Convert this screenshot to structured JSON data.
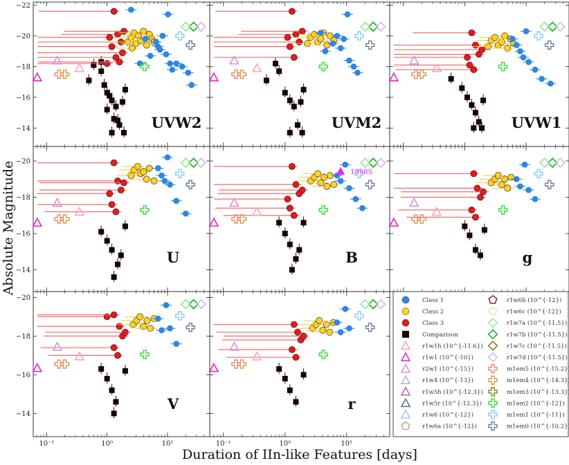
{
  "figure": {
    "ylabel": "Absolute Magnitude",
    "xlabel": "Duration of IIn-like Features [days]"
  },
  "colors": {
    "class1": "#2e86e6",
    "class2": "#ffd21f",
    "class3": "#e41a1c",
    "comparison": "#1a0000",
    "errbar_class3": "#f26b6b",
    "errbar_class2": "#f5c430",
    "errbar_class1": "#1f78d1",
    "gray_points": "#b3b3b3"
  },
  "legend": {
    "col1": [
      {
        "label": "Class 1",
        "marker": "circle",
        "color": "#2e86e6"
      },
      {
        "label": "Class 2",
        "marker": "circle",
        "color": "#ffd21f"
      },
      {
        "label": "Class 3",
        "marker": "circle",
        "color": "#e41a1c"
      },
      {
        "label": "Comparison",
        "marker": "square",
        "color": "#1a0000"
      },
      {
        "label": "r1w1h (10^{-11.6})",
        "marker": "triangle",
        "color": "#f4a6b8"
      },
      {
        "label": "r1w1 (10^{-10})",
        "marker": "triangle",
        "color": "#e61fd6"
      },
      {
        "label": "r2w1 (10^{-15})",
        "marker": "triangle",
        "color": "#d98fd9"
      },
      {
        "label": "r1w4 (10^{-13})",
        "marker": "triangle",
        "color": "#b7b0c8"
      },
      {
        "label": "r1w5h (10^{-12.3})",
        "marker": "triangle",
        "color": "#b05fc0"
      },
      {
        "label": "r1w5r (10^{-12.3})",
        "marker": "triangle",
        "color": "#5a6a80"
      },
      {
        "label": "r1w6 (10^{-12})",
        "marker": "triangle",
        "color": "#a9c4e6"
      },
      {
        "label": "r1w6a (10^{-12})",
        "marker": "pentagon",
        "color": "#c4a882"
      }
    ],
    "col2": [
      {
        "label": "r1w6b (10^{-12})",
        "marker": "pentagon",
        "color": "#a3262b"
      },
      {
        "label": "r1w6c (10^{-12})",
        "marker": "pentagon",
        "color": "#f3dcb6"
      },
      {
        "label": "r1w7a (10^{-11.5})",
        "marker": "diamond",
        "color": "#9ee89e"
      },
      {
        "label": "r1w7b (10^{-11.5})",
        "marker": "diamond",
        "color": "#1fb81f"
      },
      {
        "label": "r1w7c (10^{-11.5})",
        "marker": "diamond",
        "color": "#8a7a2a"
      },
      {
        "label": "r1w7d (10^{-11.5})",
        "marker": "diamond",
        "color": "#d7bde6"
      },
      {
        "label": "m1em5 (10^{-15.2})",
        "marker": "plus",
        "color": "#f28a6b"
      },
      {
        "label": "m1em4 (10^{-14.3})",
        "marker": "plus",
        "color": "#d99a4e"
      },
      {
        "label": "m1em3 (10^{-13.3})",
        "marker": "plus",
        "color": "#8a8a1f"
      },
      {
        "label": "m1em2 (10^{-12})",
        "marker": "plus",
        "color": "#33e533"
      },
      {
        "label": "m1em1 (10^{-11})",
        "marker": "plus",
        "color": "#8fcdf2"
      },
      {
        "label": "m1em0 (10^{-10.2})",
        "marker": "plus",
        "color": "#6f7f99"
      }
    ]
  },
  "chart_data": [
    {
      "type": "scatter",
      "band": "UVW2",
      "xscale": "log",
      "xlim": [
        0.06,
        50
      ],
      "ylim": [
        -12.8,
        -22.2
      ],
      "yticks": [
        -22,
        -20,
        -18,
        -16,
        -14
      ],
      "class1": [
        [
          7.5,
          -19.1
        ],
        [
          8.3,
          -20.0
        ],
        [
          9.5,
          -18.8
        ],
        [
          10.2,
          -21.4
        ],
        [
          11,
          -18.2
        ],
        [
          12,
          -17.8
        ],
        [
          14,
          -18.2
        ],
        [
          17.5,
          -18.0
        ],
        [
          22,
          -17.6
        ],
        [
          25,
          -16.8
        ],
        [
          6.5,
          -19.6
        ],
        [
          7,
          -19.3
        ],
        [
          5.2,
          -18.7
        ],
        [
          3.5,
          -18.2
        ],
        [
          4.3,
          -19.8
        ],
        [
          2.5,
          -21.7
        ]
      ],
      "class2": [
        [
          2.2,
          -19.6
        ],
        [
          2.5,
          -19.9
        ],
        [
          2.8,
          -20.2
        ],
        [
          3.0,
          -19.5
        ],
        [
          3.3,
          -20.0
        ],
        [
          3.6,
          -19.7
        ],
        [
          4.0,
          -20.3
        ],
        [
          4.5,
          -19.4
        ],
        [
          5.0,
          -20.1
        ],
        [
          5.5,
          -19.8
        ],
        [
          6.0,
          -19.6
        ],
        [
          2.6,
          -19.2
        ]
      ],
      "class3": [
        [
          1.3,
          -21.6
        ],
        [
          1.5,
          -20.1
        ],
        [
          1.7,
          -19.6
        ],
        [
          1.8,
          -18.9
        ],
        [
          1.2,
          -19.3
        ],
        [
          1.4,
          -18.6
        ],
        [
          1.9,
          -20.3
        ],
        [
          1.0,
          -18.2
        ],
        [
          1.6,
          -18.3
        ],
        [
          1.1,
          -19.9
        ]
      ],
      "comparison": [
        [
          0.5,
          -17.1
        ],
        [
          0.8,
          -17.7
        ],
        [
          0.9,
          -16.8
        ],
        [
          1.0,
          -16.3
        ],
        [
          1.1,
          -16.1
        ],
        [
          1.2,
          -15.8
        ],
        [
          1.3,
          -14.6
        ],
        [
          1.4,
          -15.4
        ],
        [
          1.0,
          -15.2
        ],
        [
          1.6,
          -14.2
        ],
        [
          1.8,
          -15.7
        ],
        [
          2.0,
          -16.5
        ],
        [
          1.2,
          -13.7
        ],
        [
          1.5,
          -14.5
        ],
        [
          1.9,
          -13.7
        ],
        [
          0.6,
          -18.1
        ],
        [
          0.8,
          -18.3
        ]
      ]
    },
    {
      "type": "scatter",
      "band": "UVM2",
      "xscale": "log",
      "xlim": [
        0.06,
        50
      ],
      "ylim": [
        -12.8,
        -22.2
      ],
      "yticks": [
        -22,
        -20,
        -18,
        -16,
        -14
      ],
      "class1": [
        [
          8,
          -19.2
        ],
        [
          9,
          -19.8
        ],
        [
          10.3,
          -21.4
        ],
        [
          11,
          -18.4
        ],
        [
          13,
          -18.0
        ],
        [
          15,
          -17.6
        ],
        [
          7,
          -20.0
        ],
        [
          6,
          -19.5
        ],
        [
          4.5,
          -19.0
        ],
        [
          3.8,
          -20.2
        ]
      ],
      "class2": [
        [
          2.3,
          -19.5
        ],
        [
          2.6,
          -19.9
        ],
        [
          3.0,
          -20.1
        ],
        [
          3.4,
          -19.6
        ],
        [
          3.8,
          -19.8
        ],
        [
          4.2,
          -20.2
        ],
        [
          4.8,
          -19.4
        ],
        [
          5.4,
          -20.0
        ],
        [
          6.2,
          -19.7
        ]
      ],
      "class3": [
        [
          1.3,
          -21.6
        ],
        [
          1.5,
          -20.1
        ],
        [
          1.7,
          -19.6
        ],
        [
          1.2,
          -19.3
        ],
        [
          1.4,
          -18.6
        ],
        [
          1.9,
          -20.3
        ],
        [
          1.1,
          -19.9
        ]
      ],
      "comparison": [
        [
          0.5,
          -17.1
        ],
        [
          0.8,
          -17.7
        ],
        [
          1.0,
          -16.3
        ],
        [
          1.2,
          -15.8
        ],
        [
          1.4,
          -15.4
        ],
        [
          1.6,
          -14.2
        ],
        [
          1.8,
          -15.7
        ],
        [
          2.0,
          -16.5
        ],
        [
          1.2,
          -13.7
        ],
        [
          1.9,
          -13.7
        ],
        [
          0.7,
          -18.2
        ]
      ]
    },
    {
      "type": "scatter",
      "band": "UVW1",
      "xscale": "log",
      "xlim": [
        0.06,
        50
      ],
      "ylim": [
        -12.8,
        -22.2
      ],
      "yticks": [
        -22,
        -20,
        -18,
        -16,
        -14
      ],
      "class1": [
        [
          8,
          -19.0
        ],
        [
          9,
          -18.6
        ],
        [
          10,
          -20.3
        ],
        [
          11,
          -18.3
        ],
        [
          14,
          -17.8
        ],
        [
          18,
          -17.2
        ],
        [
          25,
          -16.9
        ],
        [
          7,
          -19.4
        ],
        [
          6,
          -19.8
        ]
      ],
      "class2": [
        [
          2.4,
          -19.3
        ],
        [
          2.7,
          -19.7
        ],
        [
          3.1,
          -19.9
        ],
        [
          3.5,
          -19.4
        ],
        [
          4.0,
          -19.6
        ],
        [
          4.5,
          -20.0
        ],
        [
          5.0,
          -19.2
        ],
        [
          5.6,
          -19.8
        ],
        [
          6.3,
          -19.5
        ]
      ],
      "class3": [
        [
          1.3,
          -20.2
        ],
        [
          1.5,
          -19.4
        ],
        [
          1.7,
          -18.8
        ],
        [
          1.2,
          -18.1
        ],
        [
          1.4,
          -17.8
        ],
        [
          1.9,
          -19.1
        ],
        [
          1.1,
          -18.6
        ]
      ],
      "comparison": [
        [
          0.6,
          -17.2
        ],
        [
          0.9,
          -16.6
        ],
        [
          1.1,
          -16.0
        ],
        [
          1.3,
          -15.5
        ],
        [
          1.5,
          -15.0
        ],
        [
          1.7,
          -14.4
        ],
        [
          2.0,
          -15.8
        ],
        [
          1.4,
          -14.0
        ],
        [
          1.9,
          -14.0
        ]
      ]
    },
    {
      "type": "scatter",
      "band": "U",
      "xscale": "log",
      "xlim": [
        0.06,
        50
      ],
      "ylim": [
        -12.8,
        -20.8
      ],
      "yticks": [
        -20,
        -18,
        -16,
        -14
      ],
      "class1": [
        [
          8,
          -19.2
        ],
        [
          9,
          -18.9
        ],
        [
          10,
          -20.2
        ],
        [
          11,
          -18.7
        ],
        [
          14,
          -17.8
        ],
        [
          20,
          -17.1
        ],
        [
          7,
          -19.6
        ]
      ],
      "class2": [
        [
          2.5,
          -19.2
        ],
        [
          2.8,
          -19.5
        ],
        [
          3.2,
          -19.7
        ],
        [
          3.6,
          -19.3
        ],
        [
          4.0,
          -19.4
        ],
        [
          4.5,
          -19.0
        ],
        [
          5.0,
          -19.6
        ],
        [
          6.0,
          -18.9
        ]
      ],
      "class3": [
        [
          1.3,
          -19.9
        ],
        [
          1.5,
          -18.9
        ],
        [
          1.7,
          -18.4
        ],
        [
          1.2,
          -17.6
        ],
        [
          1.4,
          -17.2
        ],
        [
          1.9,
          -18.8
        ],
        [
          1.1,
          -18.2
        ]
      ],
      "comparison": [
        [
          0.8,
          -16.1
        ],
        [
          1.0,
          -15.6
        ],
        [
          1.2,
          -15.1
        ],
        [
          1.5,
          -14.3
        ],
        [
          1.7,
          -14.8
        ],
        [
          2.0,
          -16.4
        ],
        [
          1.3,
          -13.6
        ]
      ]
    },
    {
      "type": "scatter",
      "band": "B",
      "xscale": "log",
      "xlim": [
        0.06,
        50
      ],
      "ylim": [
        -12.8,
        -20.8
      ],
      "yticks": [
        -20,
        -18,
        -16,
        -14
      ],
      "annotation": {
        "label": "1998S",
        "x": 8,
        "y": -19.4
      },
      "class1": [
        [
          8,
          -18.9
        ],
        [
          9.5,
          -19.8
        ],
        [
          11,
          -18.5
        ],
        [
          14,
          -17.9
        ],
        [
          18,
          -17.4
        ],
        [
          7,
          -19.2
        ]
      ],
      "class2": [
        [
          2.6,
          -18.9
        ],
        [
          3.0,
          -19.1
        ],
        [
          3.4,
          -19.3
        ],
        [
          3.8,
          -18.8
        ],
        [
          4.3,
          -19.1
        ],
        [
          4.8,
          -18.6
        ],
        [
          5.4,
          -19.2
        ],
        [
          6.2,
          -18.7
        ]
      ],
      "class3": [
        [
          1.3,
          -19.7
        ],
        [
          1.5,
          -18.7
        ],
        [
          1.7,
          -18.2
        ],
        [
          1.2,
          -17.4
        ],
        [
          1.4,
          -17.0
        ],
        [
          1.9,
          -18.4
        ],
        [
          1.1,
          -17.9
        ]
      ],
      "comparison": [
        [
          0.8,
          -16.6
        ],
        [
          1.0,
          -16.0
        ],
        [
          1.2,
          -15.4
        ],
        [
          1.5,
          -14.6
        ],
        [
          1.7,
          -15.1
        ],
        [
          2.0,
          -16.6
        ],
        [
          1.3,
          -14.0
        ]
      ]
    },
    {
      "type": "scatter",
      "band": "g",
      "xscale": "log",
      "xlim": [
        0.06,
        50
      ],
      "ylim": [
        -12.8,
        -20.8
      ],
      "yticks": [
        -20,
        -18,
        -16,
        -14
      ],
      "class1": [
        [
          8,
          -18.6
        ],
        [
          9.5,
          -19.8
        ],
        [
          11,
          -18.4
        ],
        [
          14,
          -17.9
        ],
        [
          7,
          -19.0
        ]
      ],
      "class2": [
        [
          2.7,
          -18.8
        ],
        [
          3.1,
          -19.0
        ],
        [
          3.5,
          -19.2
        ],
        [
          4.0,
          -18.7
        ],
        [
          4.5,
          -19.0
        ],
        [
          5.0,
          -18.5
        ],
        [
          5.7,
          -19.1
        ]
      ],
      "class3": [
        [
          1.4,
          -19.3
        ],
        [
          1.6,
          -18.5
        ],
        [
          1.8,
          -18.0
        ],
        [
          1.3,
          -17.3
        ],
        [
          1.5,
          -16.9
        ],
        [
          2.0,
          -18.3
        ]
      ],
      "comparison": [
        [
          1.0,
          -16.4
        ],
        [
          1.2,
          -15.9
        ],
        [
          1.5,
          -15.1
        ],
        [
          1.8,
          -14.8
        ],
        [
          2.1,
          -16.2
        ]
      ]
    },
    {
      "type": "scatter",
      "band": "V",
      "xscale": "log",
      "xlim": [
        0.06,
        50
      ],
      "ylim": [
        -12.8,
        -20.3
      ],
      "yticks": [
        -20,
        -18,
        -16,
        -14
      ],
      "class1": [
        [
          8,
          -18.3
        ],
        [
          9.5,
          -19.6
        ],
        [
          11,
          -18.4
        ],
        [
          14,
          -17.6
        ],
        [
          7,
          -18.9
        ]
      ],
      "class2": [
        [
          2.7,
          -18.6
        ],
        [
          3.1,
          -18.8
        ],
        [
          3.5,
          -19.0
        ],
        [
          4.0,
          -18.5
        ],
        [
          4.6,
          -18.8
        ],
        [
          5.2,
          -18.4
        ],
        [
          6.0,
          -18.9
        ]
      ],
      "class3": [
        [
          1.0,
          -19.0
        ],
        [
          1.3,
          -19.1
        ],
        [
          1.6,
          -18.5
        ],
        [
          1.8,
          -18.0
        ],
        [
          1.3,
          -17.4
        ],
        [
          1.5,
          -17.0
        ],
        [
          2.0,
          -18.2
        ]
      ],
      "comparison": [
        [
          0.8,
          -16.3
        ],
        [
          1.0,
          -15.8
        ],
        [
          1.2,
          -15.2
        ],
        [
          1.4,
          -14.6
        ],
        [
          1.3,
          -14.0
        ],
        [
          2.0,
          -16.2
        ]
      ]
    },
    {
      "type": "scatter",
      "band": "r",
      "xscale": "log",
      "xlim": [
        0.06,
        50
      ],
      "ylim": [
        -12.8,
        -20.3
      ],
      "yticks": [
        -20,
        -18,
        -16,
        -14
      ],
      "class1": [
        [
          8,
          -18.2
        ],
        [
          9.5,
          -19.4
        ],
        [
          11,
          -18.4
        ],
        [
          7,
          -18.7
        ]
      ],
      "class2": [
        [
          2.8,
          -18.4
        ],
        [
          3.2,
          -18.6
        ],
        [
          3.6,
          -18.8
        ],
        [
          4.1,
          -18.3
        ],
        [
          4.7,
          -18.6
        ],
        [
          5.3,
          -18.2
        ],
        [
          6.1,
          -18.7
        ]
      ],
      "class3": [
        [
          1.4,
          -18.6
        ],
        [
          1.6,
          -18.2
        ],
        [
          1.8,
          -17.8
        ],
        [
          1.3,
          -17.3
        ],
        [
          1.5,
          -16.9
        ],
        [
          2.0,
          -18.0
        ]
      ],
      "comparison": [
        [
          0.8,
          -16.3
        ],
        [
          1.0,
          -15.8
        ],
        [
          1.2,
          -15.2
        ],
        [
          1.5,
          -14.6
        ],
        [
          2.0,
          -16.0
        ]
      ]
    }
  ]
}
